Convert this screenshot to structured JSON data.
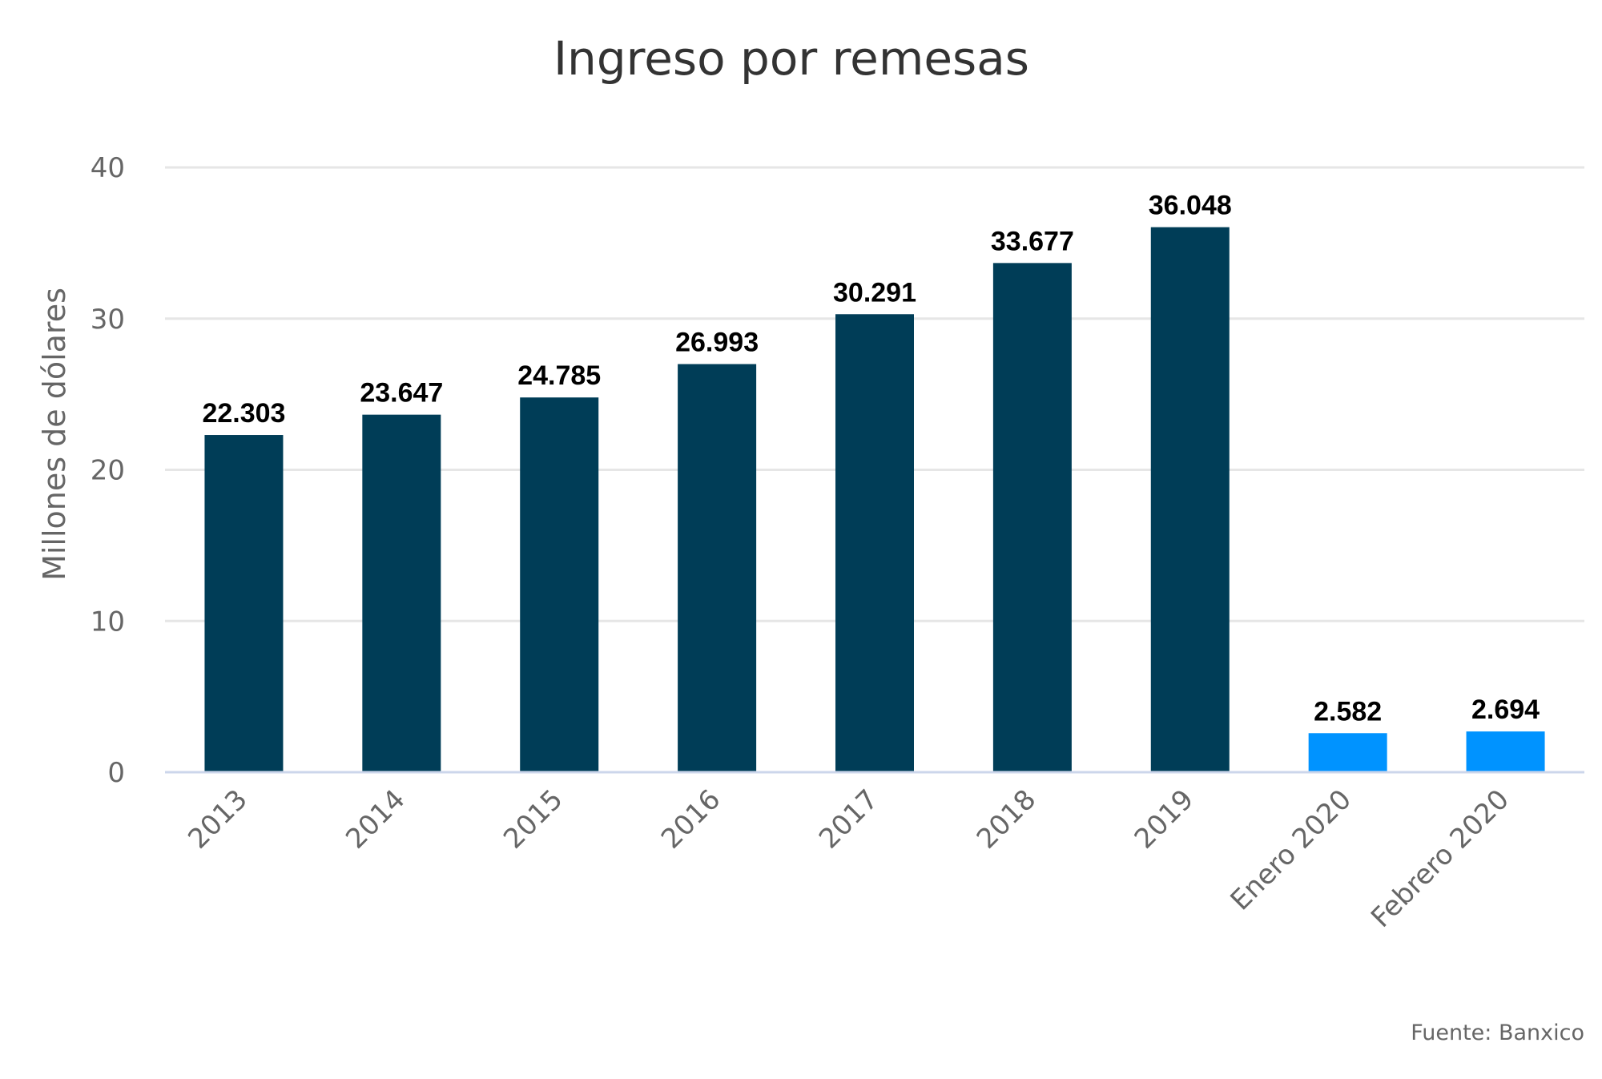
{
  "chart_data": {
    "type": "bar",
    "title": "Ingreso por remesas",
    "ylabel": "Millones de dólares",
    "xlabel": "",
    "ylim": [
      0,
      40
    ],
    "y_ticks": [
      0,
      10,
      20,
      30,
      40
    ],
    "y_tick_labels": [
      "0",
      "10",
      "20",
      "30",
      "40"
    ],
    "grid": true,
    "categories": [
      "2013",
      "2014",
      "2015",
      "2016",
      "2017",
      "2018",
      "2019",
      "Enero 2020",
      "Febrero 2020"
    ],
    "values": [
      22.303,
      23.647,
      24.785,
      26.993,
      30.291,
      33.677,
      36.048,
      2.582,
      2.694
    ],
    "data_labels": [
      "22.303",
      "23.647",
      "24.785",
      "26.993",
      "30.291",
      "33.677",
      "36.048",
      "2.582",
      "2.694"
    ],
    "bar_colors": [
      "#003d57",
      "#003d57",
      "#003d57",
      "#003d57",
      "#003d57",
      "#003d57",
      "#003d57",
      "#0093ff",
      "#0093ff"
    ],
    "credit": "Fuente: Banxico"
  }
}
